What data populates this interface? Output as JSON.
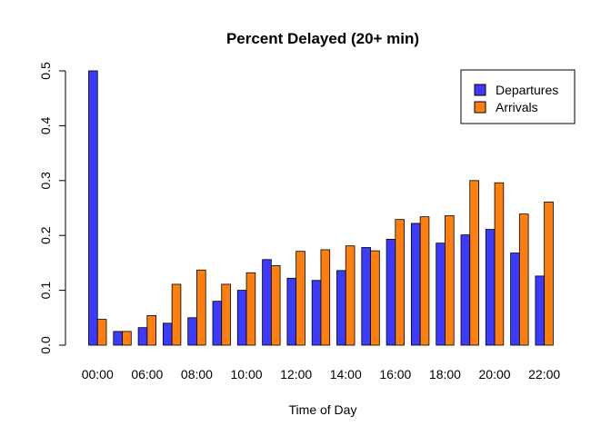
{
  "chart_data": {
    "type": "bar",
    "title": "Percent Delayed (20+ min)",
    "xlabel": "Time of Day",
    "ylabel": "",
    "ylim": [
      0,
      0.5
    ],
    "yticks": [
      "0.0",
      "0.1",
      "0.2",
      "0.3",
      "0.4",
      "0.5"
    ],
    "ytick_values": [
      0,
      0.1,
      0.2,
      0.3,
      0.4,
      0.5
    ],
    "xtick_labels": [
      "00:00",
      "06:00",
      "08:00",
      "10:00",
      "12:00",
      "14:00",
      "16:00",
      "18:00",
      "20:00",
      "22:00"
    ],
    "xtick_positions": [
      0,
      2,
      4,
      6,
      8,
      10,
      12,
      14,
      16,
      18
    ],
    "grid": false,
    "legend_position": "top-right",
    "series": [
      {
        "name": "Departures",
        "color": "#3b3bff",
        "values": [
          0.5,
          0.025,
          0.032,
          0.04,
          0.05,
          0.08,
          0.1,
          0.156,
          0.122,
          0.118,
          0.136,
          0.178,
          0.193,
          0.222,
          0.186,
          0.201,
          0.211,
          0.168,
          0.126
        ]
      },
      {
        "name": "Arrivals",
        "color": "#ff7f0e",
        "values": [
          0.047,
          0.025,
          0.054,
          0.111,
          0.137,
          0.111,
          0.132,
          0.145,
          0.171,
          0.174,
          0.181,
          0.172,
          0.229,
          0.234,
          0.236,
          0.3,
          0.296,
          0.239,
          0.261
        ]
      }
    ]
  }
}
